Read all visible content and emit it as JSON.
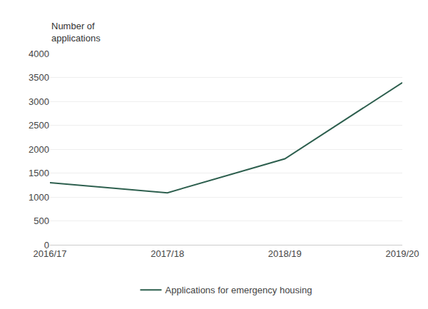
{
  "chart_data": {
    "type": "line",
    "ylabel": "Number of\napplications",
    "categories": [
      "2016/17",
      "2017/18",
      "2018/19",
      "2019/20"
    ],
    "series": [
      {
        "name": "Applications for emergency housing",
        "color": "#2d5f4e",
        "values": [
          1300,
          1087,
          1799,
          3391
        ]
      }
    ],
    "ylim": [
      0,
      4000
    ],
    "yticks": [
      0,
      500,
      1000,
      1500,
      2000,
      2500,
      3000,
      3500,
      4000
    ],
    "grid": true,
    "legend": "bottom"
  }
}
